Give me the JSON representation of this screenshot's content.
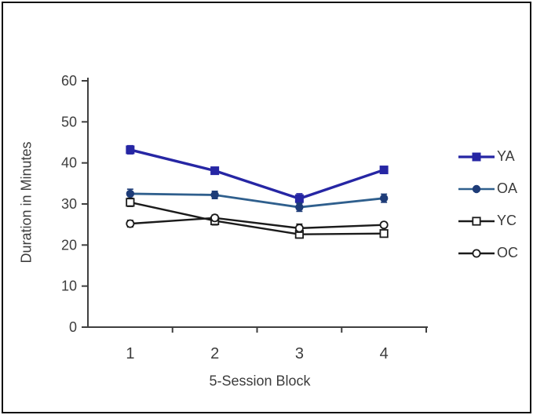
{
  "figure": {
    "background": "#ffffff",
    "border_color": "#0d0d0d"
  },
  "chart_data": {
    "type": "line",
    "title": "",
    "xlabel": "5-Session Block",
    "ylabel": "Duration in Minutes",
    "categories": [
      "1",
      "2",
      "3",
      "4"
    ],
    "ylim": [
      0,
      60
    ],
    "yticks": [
      0,
      10,
      20,
      30,
      40,
      50,
      60
    ],
    "grid": false,
    "legend_position": "right",
    "error_bars": true,
    "axis_color": "#3f3f3f",
    "text_color": "#3d3d3d",
    "series": [
      {
        "name": "YA",
        "marker": "square-filled",
        "line_color": "#2626A4",
        "marker_color": "#2626A4",
        "values": [
          43.2,
          38.1,
          31.3,
          38.3
        ],
        "errors": [
          1.0,
          0.7,
          1.2,
          0.8
        ]
      },
      {
        "name": "OA",
        "marker": "circle-filled",
        "line_color": "#2F5F8D",
        "marker_color": "#1E3C78",
        "values": [
          32.5,
          32.2,
          29.2,
          31.4
        ],
        "errors": [
          1.1,
          0.9,
          1.0,
          1.0
        ]
      },
      {
        "name": "YC",
        "marker": "square-open",
        "line_color": "#1B1B1B",
        "marker_color": "#1B1B1B",
        "values": [
          30.4,
          25.9,
          22.6,
          22.8
        ],
        "errors": [
          1.0,
          1.0,
          0.9,
          0.8
        ]
      },
      {
        "name": "OC",
        "marker": "circle-open",
        "line_color": "#1B1B1B",
        "marker_color": "#1B1B1B",
        "values": [
          25.2,
          26.6,
          24.1,
          24.9
        ],
        "errors": [
          0.8,
          0.7,
          1.0,
          0.6
        ]
      }
    ]
  }
}
